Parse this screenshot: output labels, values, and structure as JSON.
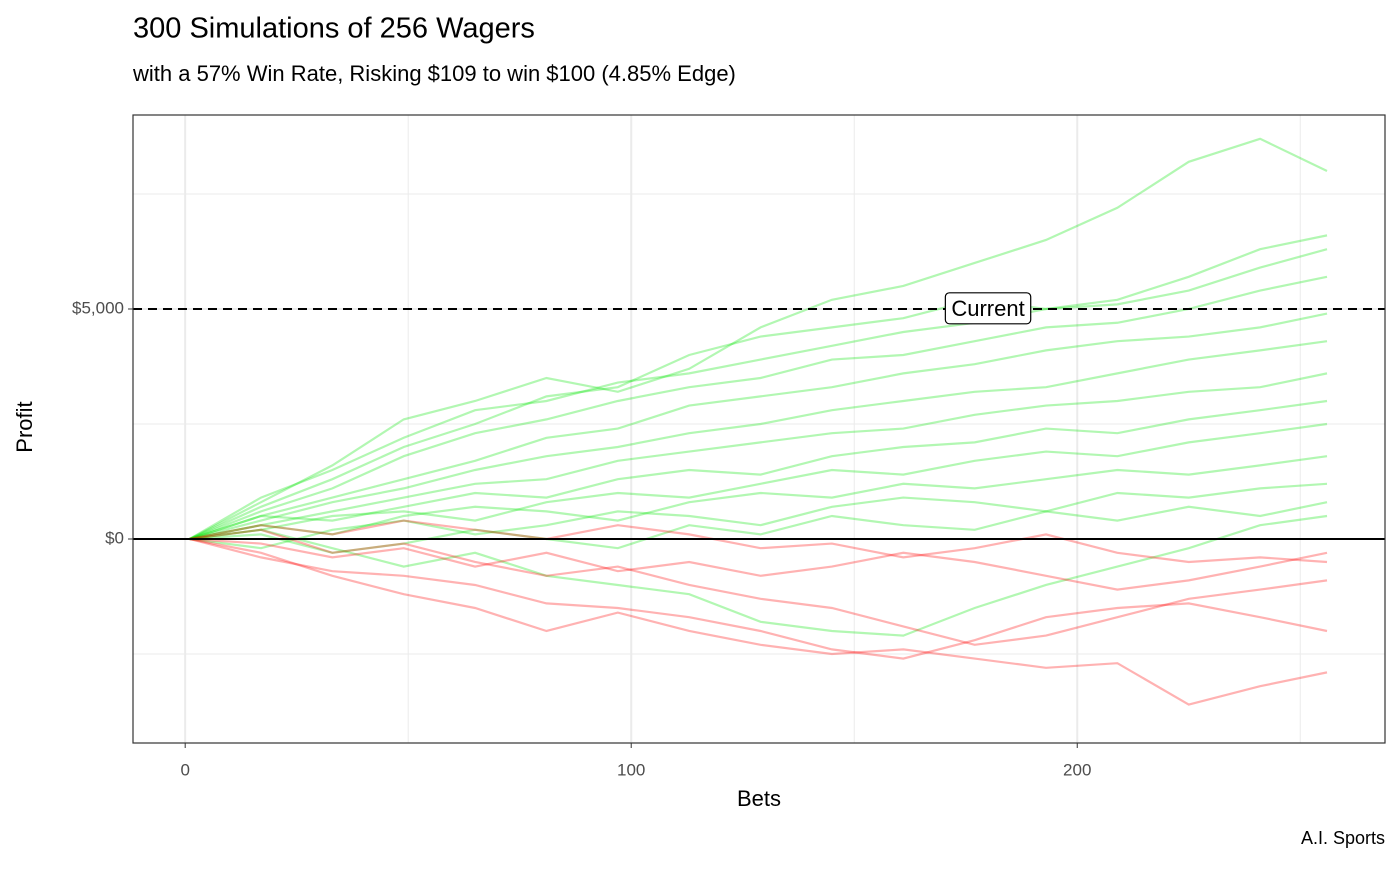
{
  "chart_data": {
    "type": "line",
    "title": "300 Simulations of 256 Wagers",
    "subtitle": "with a 57% Win Rate, Risking $109 to win $100  (4.85% Edge)",
    "x_label": "Bets",
    "y_label": "Profit",
    "caption": "A.I. Sports",
    "x": [
      1,
      17,
      33,
      49,
      65,
      81,
      97,
      113,
      129,
      145,
      161,
      177,
      193,
      209,
      225,
      241,
      256
    ],
    "line_opacity": 0.3,
    "series": [
      {
        "color": "#00e600",
        "values": [
          0,
          800,
          1600,
          2600,
          3000,
          3500,
          3200,
          3700,
          4600,
          5200,
          5500,
          6000,
          6500,
          7200,
          8200,
          8700,
          8000
        ]
      },
      {
        "color": "#00e600",
        "values": [
          0,
          700,
          1300,
          2000,
          2500,
          3100,
          3300,
          4000,
          4400,
          4600,
          4800,
          5200,
          5000,
          5200,
          5700,
          6300,
          6600
        ]
      },
      {
        "color": "#00e600",
        "values": [
          0,
          900,
          1500,
          2200,
          2800,
          3000,
          3400,
          3600,
          3900,
          4200,
          4500,
          4700,
          5000,
          5100,
          5400,
          5900,
          6300
        ]
      },
      {
        "color": "#00e600",
        "values": [
          0,
          600,
          1100,
          1800,
          2300,
          2600,
          3000,
          3300,
          3500,
          3900,
          4000,
          4300,
          4600,
          4700,
          5000,
          5400,
          5700
        ]
      },
      {
        "color": "#00e600",
        "values": [
          0,
          500,
          900,
          1300,
          1700,
          2200,
          2400,
          2900,
          3100,
          3300,
          3600,
          3800,
          4100,
          4300,
          4400,
          4600,
          4900
        ]
      },
      {
        "color": "#00e600",
        "values": [
          0,
          400,
          800,
          1100,
          1500,
          1800,
          2000,
          2300,
          2500,
          2800,
          3000,
          3200,
          3300,
          3600,
          3900,
          4100,
          4300
        ]
      },
      {
        "color": "#00e600",
        "values": [
          0,
          300,
          600,
          900,
          1200,
          1300,
          1700,
          1900,
          2100,
          2300,
          2400,
          2700,
          2900,
          3000,
          3200,
          3300,
          3600
        ]
      },
      {
        "color": "#00e600",
        "values": [
          0,
          500,
          400,
          700,
          1000,
          900,
          1300,
          1500,
          1400,
          1800,
          2000,
          2100,
          2400,
          2300,
          2600,
          2800,
          3000
        ]
      },
      {
        "color": "#00e600",
        "values": [
          0,
          200,
          500,
          600,
          400,
          800,
          1000,
          900,
          1200,
          1500,
          1400,
          1700,
          1900,
          1800,
          2100,
          2300,
          2500
        ]
      },
      {
        "color": "#00e600",
        "values": [
          0,
          300,
          100,
          500,
          700,
          600,
          400,
          800,
          1000,
          900,
          1200,
          1100,
          1300,
          1500,
          1400,
          1600,
          1800
        ]
      },
      {
        "color": "#00e600",
        "values": [
          0,
          -200,
          200,
          400,
          100,
          300,
          600,
          500,
          300,
          700,
          900,
          800,
          600,
          1000,
          900,
          1100,
          1200
        ]
      },
      {
        "color": "#00e600",
        "values": [
          0,
          100,
          -300,
          -100,
          200,
          0,
          -200,
          300,
          100,
          500,
          300,
          200,
          600,
          400,
          700,
          500,
          800
        ]
      },
      {
        "color": "#00e600",
        "values": [
          0,
          200,
          -200,
          -600,
          -300,
          -800,
          -1000,
          -1200,
          -1800,
          -2000,
          -2100,
          -1500,
          -1000,
          -600,
          -200,
          300,
          500
        ]
      },
      {
        "color": "#ff0000",
        "values": [
          0,
          -300,
          -800,
          -1200,
          -1500,
          -2000,
          -1600,
          -2000,
          -2300,
          -2500,
          -2400,
          -2600,
          -2800,
          -2700,
          -3600,
          -3200,
          -2900
        ]
      },
      {
        "color": "#ff0000",
        "values": [
          0,
          -400,
          -700,
          -800,
          -1000,
          -1400,
          -1500,
          -1700,
          -2000,
          -2400,
          -2600,
          -2200,
          -1700,
          -1500,
          -1400,
          -1700,
          -2000
        ]
      },
      {
        "color": "#ff0000",
        "values": [
          0,
          200,
          -300,
          -100,
          -500,
          -800,
          -600,
          -1000,
          -1300,
          -1500,
          -1900,
          -2300,
          -2100,
          -1700,
          -1300,
          -1100,
          -900
        ]
      },
      {
        "color": "#ff0000",
        "values": [
          0,
          300,
          100,
          400,
          200,
          0,
          300,
          100,
          -200,
          -100,
          -400,
          -200,
          100,
          -300,
          -500,
          -400,
          -500
        ]
      },
      {
        "color": "#ff0000",
        "values": [
          0,
          -100,
          -400,
          -200,
          -600,
          -300,
          -700,
          -500,
          -800,
          -600,
          -300,
          -500,
          -800,
          -1100,
          -900,
          -600,
          -300
        ]
      }
    ],
    "reference_lines": [
      {
        "y": 5000,
        "label": "Current",
        "style": "dashed"
      },
      {
        "y": 0,
        "style": "solid"
      }
    ],
    "xlim": [
      -11.7,
      269
    ],
    "ylim": [
      -4435,
      9217
    ],
    "xticks": [
      0,
      100,
      200
    ],
    "yticks": [
      {
        "value": 0,
        "label": "$0"
      },
      {
        "value": 5000,
        "label": "$5,000"
      }
    ],
    "minor_xticks": [
      50,
      150,
      250
    ],
    "minor_yticks": [
      -2500,
      2500,
      7500
    ],
    "grid": true
  }
}
